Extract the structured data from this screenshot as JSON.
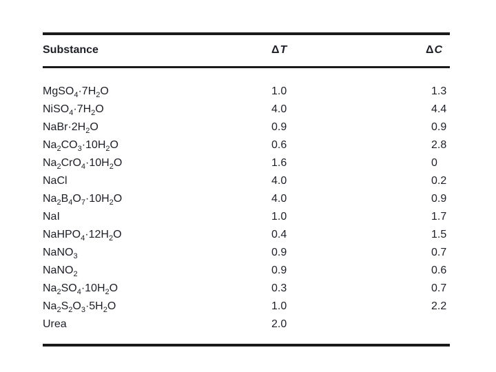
{
  "page": {
    "background": "#ffffff",
    "rule_color": "#1a1a1a",
    "text_color": "#1d1f26"
  },
  "table": {
    "headers": {
      "substance": "Substance",
      "dt": {
        "delta": "Δ",
        "symbol": "T"
      },
      "dc": {
        "delta": "Δ",
        "symbol": "C"
      }
    },
    "rows": [
      {
        "formula": "MgSO~4~·7H~2~O",
        "dt": "1.0",
        "dc": "1.3"
      },
      {
        "formula": "NiSO~4~·7H~2~O",
        "dt": "4.0",
        "dc": "4.4"
      },
      {
        "formula": "NaBr·2H~2~O",
        "dt": "0.9",
        "dc": "0.9"
      },
      {
        "formula": "Na~2~CO~3~·10H~2~O",
        "dt": "0.6",
        "dc": "2.8"
      },
      {
        "formula": "Na~2~CrO~4~·10H~2~O",
        "dt": "1.6",
        "dc": "0"
      },
      {
        "formula": "NaCl",
        "dt": "4.0",
        "dc": "0.2"
      },
      {
        "formula": "Na~2~B~4~O~7~·10H~2~O",
        "dt": "4.0",
        "dc": "0.9"
      },
      {
        "formula": "NaI",
        "dt": "1.0",
        "dc": "1.7"
      },
      {
        "formula": "NaHPO~4~·12H~2~O",
        "dt": "0.4",
        "dc": "1.5"
      },
      {
        "formula": "NaNO~3~",
        "dt": "0.9",
        "dc": "0.7"
      },
      {
        "formula": "NaNO~2~",
        "dt": "0.9",
        "dc": "0.6"
      },
      {
        "formula": "Na~2~SO~4~·10H~2~O",
        "dt": "0.3",
        "dc": "0.7"
      },
      {
        "formula": "Na~2~S~2~O~3~·5H~2~O",
        "dt": "1.0",
        "dc": "2.2"
      },
      {
        "formula": "Urea",
        "dt": "2.0",
        "dc": ""
      }
    ]
  }
}
